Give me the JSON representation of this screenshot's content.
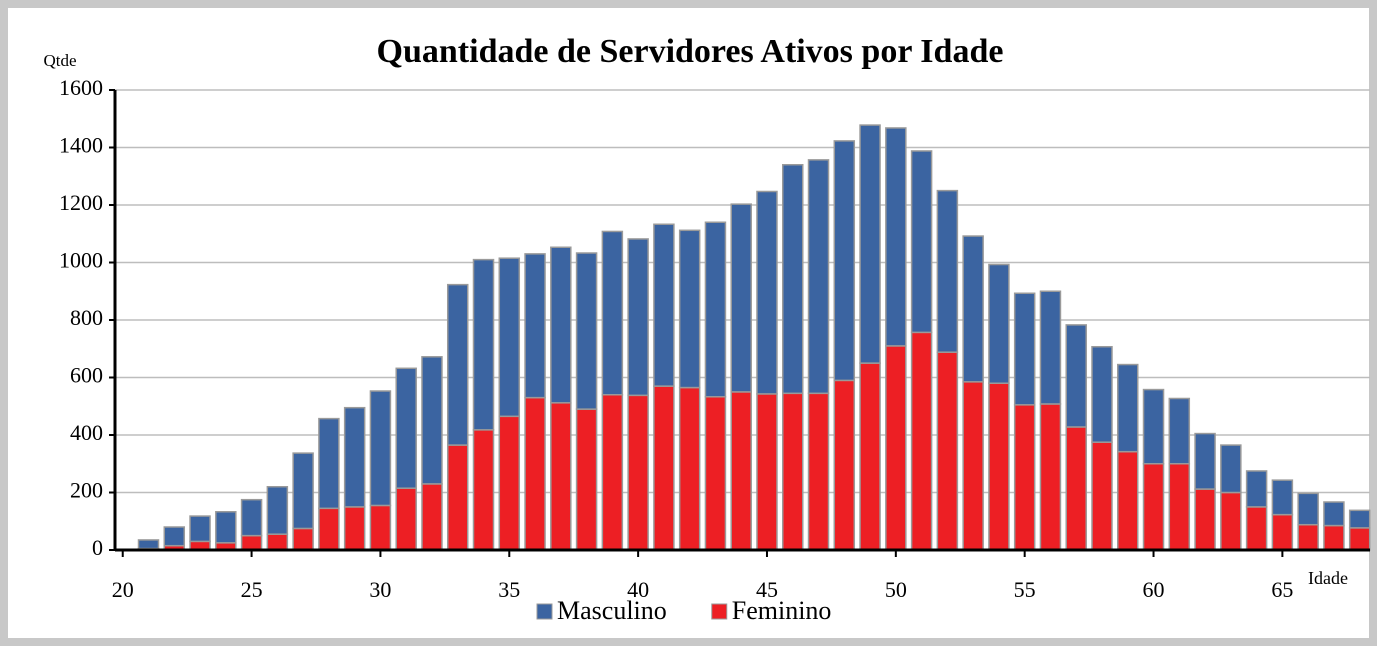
{
  "chart_data": {
    "type": "stacked_bar",
    "title": "Quantidade de Servidores Ativos por Idade",
    "y_label": "Qtde",
    "x_label": "Idade",
    "x": [
      21,
      22,
      23,
      24,
      25,
      26,
      27,
      28,
      29,
      30,
      31,
      32,
      33,
      34,
      35,
      36,
      37,
      38,
      39,
      40,
      41,
      42,
      43,
      44,
      45,
      46,
      47,
      48,
      49,
      50,
      51,
      52,
      53,
      54,
      55,
      56,
      57,
      58,
      59,
      60,
      61,
      62,
      63,
      64,
      65,
      66,
      67,
      68
    ],
    "series": [
      {
        "name": "Masculino",
        "color": "#3b64a1",
        "values": [
          30,
          65,
          88,
          108,
          125,
          165,
          262,
          312,
          345,
          398,
          417,
          442,
          558,
          592,
          550,
          500,
          541,
          543,
          568,
          544,
          563,
          547,
          607,
          653,
          704,
          795,
          812,
          833,
          828,
          758,
          631,
          562,
          507,
          413,
          388,
          392,
          355,
          332,
          303,
          258,
          227,
          193,
          165,
          125,
          120,
          109,
          82,
          61
        ]
      },
      {
        "name": "Feminino",
        "color": "#ed1f24",
        "values": [
          5,
          15,
          30,
          25,
          50,
          55,
          75,
          145,
          150,
          155,
          215,
          230,
          365,
          418,
          465,
          530,
          512,
          490,
          540,
          538,
          570,
          565,
          533,
          550,
          543,
          545,
          545,
          590,
          650,
          710,
          757,
          688,
          585,
          580,
          505,
          508,
          428,
          375,
          342,
          300,
          300,
          212,
          200,
          150,
          123,
          88,
          85,
          77
        ]
      }
    ],
    "xlim": [
      19.7,
      68.4
    ],
    "xticks": [
      20,
      25,
      30,
      35,
      40,
      45,
      50,
      55,
      60,
      65
    ],
    "ylim": [
      0,
      1600
    ],
    "yticks": [
      0,
      200,
      400,
      600,
      800,
      1000,
      1200,
      1400,
      1600
    ],
    "grid": true,
    "legend": "bottom"
  }
}
